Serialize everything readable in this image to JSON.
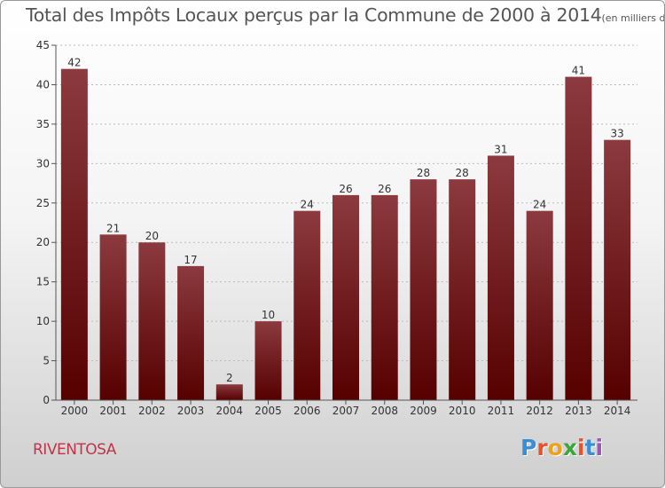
{
  "title": "Total des Impôts Locaux perçus par la Commune de 2000 à 2014",
  "title_unit": "(en milliers d'€)",
  "commune": "RIVENTOSA",
  "logo": {
    "text": "Proxiti",
    "letter_colors": [
      "#3a8fd4",
      "#e9502b",
      "#f0a019",
      "#3ba63d",
      "#e9502b",
      "#3a8fd4",
      "#9b59b6"
    ]
  },
  "colors": {
    "bar_top": "#8c3a3f",
    "bar_bottom": "#560000",
    "axis": "#555555",
    "grid": "#bbbbbb",
    "text": "#333333"
  },
  "chart_data": {
    "type": "bar",
    "title": "Total des Impôts Locaux perçus par la Commune de 2000 à 2014",
    "xlabel": "",
    "ylabel": "",
    "categories": [
      "2000",
      "2001",
      "2002",
      "2003",
      "2004",
      "2005",
      "2006",
      "2007",
      "2008",
      "2009",
      "2010",
      "2011",
      "2012",
      "2013",
      "2014"
    ],
    "values": [
      42,
      21,
      20,
      17,
      2,
      10,
      24,
      26,
      26,
      28,
      28,
      31,
      24,
      41,
      33
    ],
    "ylim": [
      0,
      45
    ],
    "yticks": [
      0,
      5,
      10,
      15,
      20,
      25,
      30,
      35,
      40,
      45
    ],
    "grid": true,
    "data_labels": true
  }
}
